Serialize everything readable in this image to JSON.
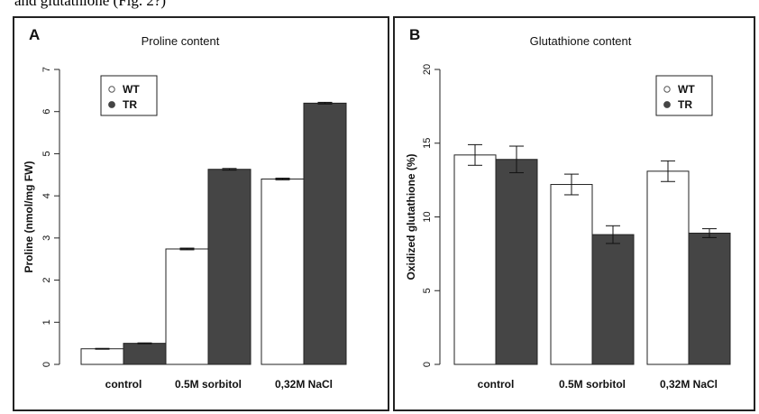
{
  "caption_fragment": "and glutathione (Fig. 2?)",
  "colors": {
    "wt_fill": "#ffffff",
    "tr_fill": "#454545",
    "stroke": "#222222"
  },
  "chart_data": [
    {
      "panel": "A",
      "type": "bar",
      "title": "Proline content",
      "xlabel": "",
      "ylabel": "Proline (nmol/mg FW)",
      "ylim": [
        0,
        7
      ],
      "yticks": [
        "0",
        "1",
        "2",
        "3",
        "4",
        "5",
        "6",
        "7"
      ],
      "categories": [
        "control",
        "0.5M sorbitol",
        "0,32M NaCl"
      ],
      "series": [
        {
          "name": "WT",
          "values": [
            0.37,
            2.74,
            4.4
          ],
          "errors": [
            0.01,
            0.02,
            0.02
          ]
        },
        {
          "name": "TR",
          "values": [
            0.5,
            4.63,
            6.2
          ],
          "errors": [
            0.01,
            0.02,
            0.02
          ]
        }
      ],
      "legend": {
        "placement": "top-left",
        "entries": [
          "WT",
          "TR"
        ]
      },
      "grid": false
    },
    {
      "panel": "B",
      "type": "bar",
      "title": "Glutathione content",
      "xlabel": "",
      "ylabel": "Oxidized glutathione (%)",
      "ylim": [
        0,
        20
      ],
      "yticks": [
        "0",
        "5",
        "10",
        "15",
        "20"
      ],
      "categories": [
        "control",
        "0.5M sorbitol",
        "0,32M NaCl"
      ],
      "series": [
        {
          "name": "WT",
          "values": [
            14.2,
            12.2,
            13.1
          ],
          "errors": [
            0.7,
            0.7,
            0.7
          ]
        },
        {
          "name": "TR",
          "values": [
            13.9,
            8.8,
            8.9
          ],
          "errors": [
            0.9,
            0.6,
            0.3
          ]
        }
      ],
      "legend": {
        "placement": "top-right",
        "entries": [
          "WT",
          "TR"
        ]
      },
      "grid": false
    }
  ]
}
